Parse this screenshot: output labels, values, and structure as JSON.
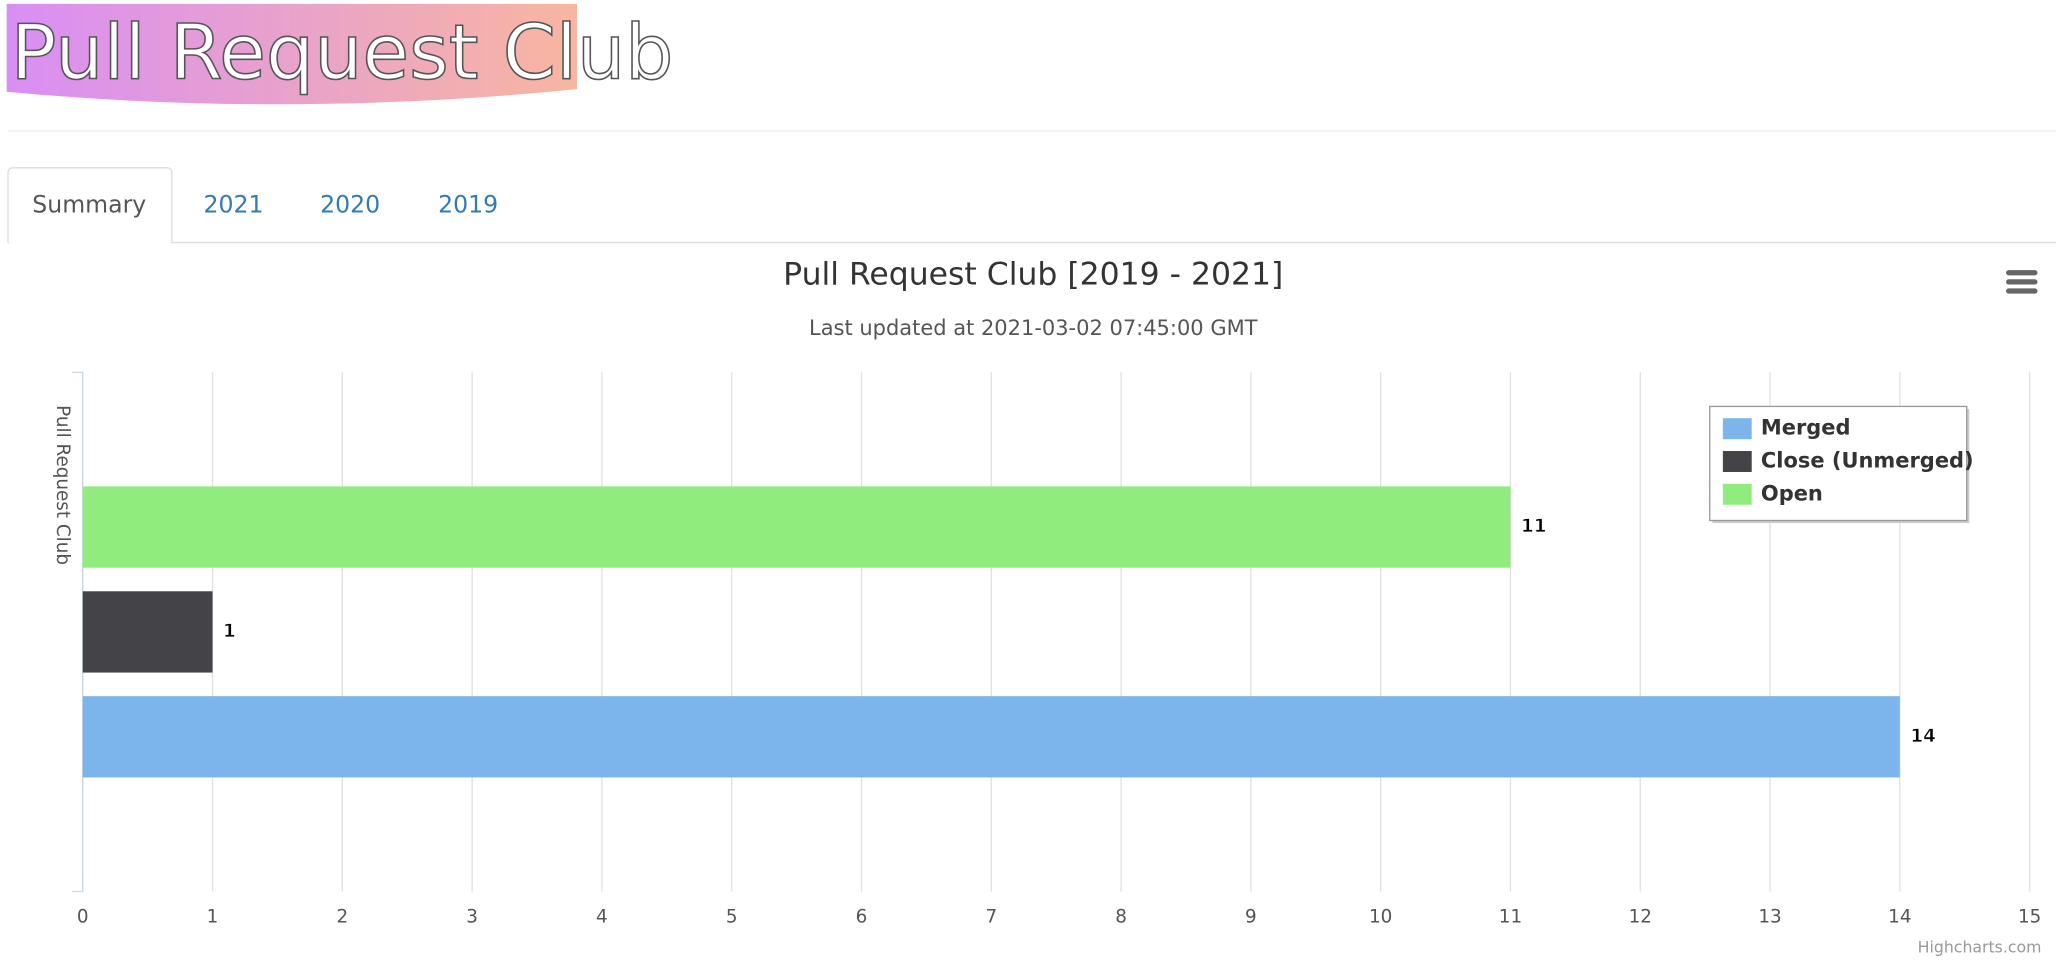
{
  "header": {
    "title": "Pull Request Club"
  },
  "tabs": [
    "Summary",
    "2021",
    "2020",
    "2019"
  ],
  "chart_data": {
    "type": "bar",
    "horizontal": true,
    "title": "Pull Request Club [2019 - 2021]",
    "subtitle": "Last updated at 2021-03-02 07:45:00 GMT",
    "y_axis_label": "Pull Request Club",
    "categories": [
      null
    ],
    "series": [
      {
        "name": "Merged",
        "color": "#7cb5ec",
        "values": [
          14
        ]
      },
      {
        "name": "Close (Unmerged)",
        "color": "#434348",
        "values": [
          1
        ]
      },
      {
        "name": "Open",
        "color": "#90ed7d",
        "values": [
          11
        ]
      }
    ],
    "xlim": [
      0,
      15
    ],
    "xticks": [
      0,
      1,
      2,
      3,
      4,
      5,
      6,
      7,
      8,
      9,
      10,
      11,
      12,
      13,
      14,
      15
    ],
    "grid": true,
    "legend_position": "top-right",
    "data_labels": true,
    "credits": "Highcharts.com"
  }
}
